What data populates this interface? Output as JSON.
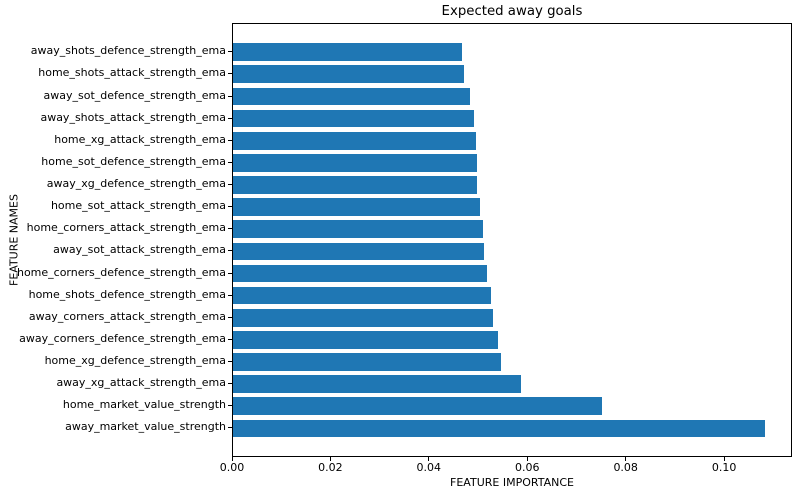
{
  "chart_data": {
    "type": "bar",
    "orientation": "horizontal",
    "title": "Expected away goals",
    "xlabel": "FEATURE IMPORTANCE",
    "ylabel": "FEATURE NAMES",
    "bar_color": "#1f77b4",
    "grid": false,
    "legend": false,
    "xlim": [
      0,
      0.1138
    ],
    "xticks": [
      0,
      0.02,
      0.04,
      0.06,
      0.08,
      0.1
    ],
    "xtick_labels": [
      "0.00",
      "0.02",
      "0.04",
      "0.06",
      "0.08",
      "0.10"
    ],
    "categories": [
      "away_shots_defence_strength_ema",
      "home_shots_attack_strength_ema",
      "away_sot_defence_strength_ema",
      "away_shots_attack_strength_ema",
      "home_xg_attack_strength_ema",
      "home_sot_defence_strength_ema",
      "away_xg_defence_strength_ema",
      "home_sot_attack_strength_ema",
      "home_corners_attack_strength_ema",
      "away_sot_attack_strength_ema",
      "home_corners_defence_strength_ema",
      "home_shots_defence_strength_ema",
      "away_corners_attack_strength_ema",
      "away_corners_defence_strength_ema",
      "home_xg_defence_strength_ema",
      "away_xg_attack_strength_ema",
      "home_market_value_strength",
      "away_market_value_strength"
    ],
    "values": [
      0.0465,
      0.0469,
      0.0481,
      0.0489,
      0.0494,
      0.0495,
      0.0496,
      0.0501,
      0.0507,
      0.051,
      0.0516,
      0.0524,
      0.0529,
      0.0539,
      0.0545,
      0.0585,
      0.075,
      0.108
    ]
  }
}
